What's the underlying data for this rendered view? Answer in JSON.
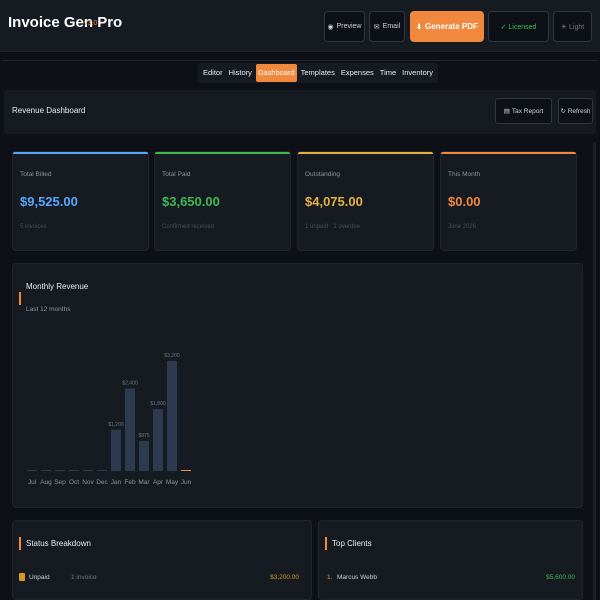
{
  "app": {
    "title": "Invoice Gen Pro",
    "version": "v3.0"
  },
  "toolbar": {
    "preview": "Preview",
    "email": "Email",
    "generate_pdf": "Generate PDF",
    "licensed": "✓ Licensed",
    "light": "☀ Light"
  },
  "tabs": [
    "Editor",
    "History",
    "Dashboard",
    "Templates",
    "Expenses",
    "Time",
    "Inventory"
  ],
  "active_tab": "Dashboard",
  "header": {
    "title": "Revenue Dashboard",
    "tax_report": "Tax Report",
    "refresh": "↻ Refresh"
  },
  "stats": [
    {
      "label": "Total Billed",
      "value": "$9,525.00",
      "sub": "5 invoices",
      "color": "#58a6ff"
    },
    {
      "label": "Total Paid",
      "value": "$3,650.00",
      "sub": "Confirmed received",
      "color": "#3fb950"
    },
    {
      "label": "Outstanding",
      "value": "$4,075.00",
      "sub": "1 unpaid · 1 overdue",
      "color": "#e3b341"
    },
    {
      "label": "This Month",
      "value": "$0.00",
      "sub": "June 2026",
      "color": "#f0883e"
    }
  ],
  "monthly": {
    "title": "Monthly Revenue",
    "subtitle": "Last 12 months"
  },
  "chart_data": {
    "type": "bar",
    "categories": [
      "Jul",
      "Aug",
      "Sep",
      "Oct",
      "Nov",
      "Dec",
      "Jan",
      "Feb",
      "Mar",
      "Apr",
      "May",
      "Jun"
    ],
    "values": [
      0,
      0,
      0,
      0,
      0,
      0,
      1200,
      2400,
      875,
      1800,
      3200,
      0
    ],
    "data_labels": [
      "",
      "",
      "",
      "",
      "",
      "",
      "$1,200",
      "$2,400",
      "$875",
      "$1,800",
      "$3,200",
      ""
    ],
    "bar_color": "#2d3a4f",
    "current_month_color": "#f0883e",
    "ylim": [
      0,
      3200
    ]
  },
  "status_breakdown": {
    "title": "Status Breakdown",
    "rows": [
      {
        "label": "Unpaid",
        "count": "1 invoice",
        "amount": "$3,200.00"
      }
    ]
  },
  "top_clients": {
    "title": "Top Clients",
    "rows": [
      {
        "rank": "1.",
        "name": "Marcus Webb",
        "amount": "$5,600.00"
      }
    ]
  }
}
